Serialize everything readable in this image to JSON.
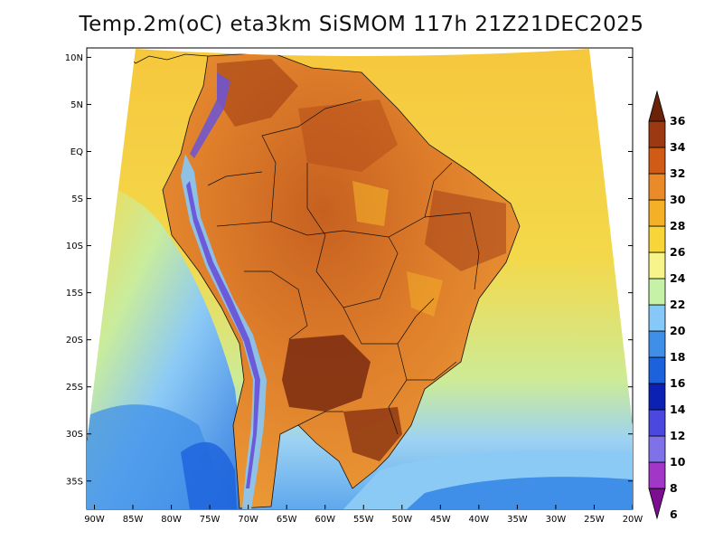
{
  "title": "Temp.2m(oC) eta3km SiSMOM 117h 21Z21DEC2025",
  "map": {
    "variable": "2 m temperature",
    "units": "oC",
    "lon_range": [
      -91,
      -20
    ],
    "lat_range": [
      -38,
      11
    ],
    "lon_ticks": [
      {
        "value": -90,
        "label": "90W"
      },
      {
        "value": -85,
        "label": "85W"
      },
      {
        "value": -80,
        "label": "80W"
      },
      {
        "value": -75,
        "label": "75W"
      },
      {
        "value": -70,
        "label": "70W"
      },
      {
        "value": -65,
        "label": "65W"
      },
      {
        "value": -60,
        "label": "60W"
      },
      {
        "value": -55,
        "label": "55W"
      },
      {
        "value": -50,
        "label": "50W"
      },
      {
        "value": -45,
        "label": "45W"
      },
      {
        "value": -40,
        "label": "40W"
      },
      {
        "value": -35,
        "label": "35W"
      },
      {
        "value": -30,
        "label": "30W"
      },
      {
        "value": -25,
        "label": "25W"
      },
      {
        "value": -20,
        "label": "20W"
      }
    ],
    "lat_ticks": [
      {
        "value": 10,
        "label": "10N"
      },
      {
        "value": 5,
        "label": "5N"
      },
      {
        "value": 0,
        "label": "EQ"
      },
      {
        "value": -5,
        "label": "5S"
      },
      {
        "value": -10,
        "label": "10S"
      },
      {
        "value": -15,
        "label": "15S"
      },
      {
        "value": -20,
        "label": "20S"
      },
      {
        "value": -25,
        "label": "25S"
      },
      {
        "value": -30,
        "label": "30S"
      },
      {
        "value": -35,
        "label": "35S"
      }
    ]
  },
  "colorbar": {
    "levels": [
      "6",
      "8",
      "10",
      "12",
      "14",
      "16",
      "18",
      "20",
      "22",
      "24",
      "26",
      "28",
      "30",
      "32",
      "34",
      "36"
    ],
    "colors": [
      "#7b0f90",
      "#a236c6",
      "#7f72e8",
      "#4a48df",
      "#0a21b4",
      "#1c62dc",
      "#3f8fe8",
      "#86c8f8",
      "#c6f2a8",
      "#f6f48a",
      "#f8d63a",
      "#f4b128",
      "#eb8a28",
      "#cf5b17",
      "#9c3812",
      "#6a2308"
    ]
  },
  "palette": {
    "ocean_warm": "#f6c73d",
    "ocean_mid": "#f4d84a",
    "ocean_cool": "#bdeb9a",
    "ocean_cold": "#8ccaf6",
    "ocean_coldest": "#3f8fe8",
    "land_hot": "#e58a2f",
    "land_hotter": "#c25d1e",
    "land_hottest": "#7a2a10",
    "andes_cold": "#6a55d8",
    "borders": "#111111"
  }
}
